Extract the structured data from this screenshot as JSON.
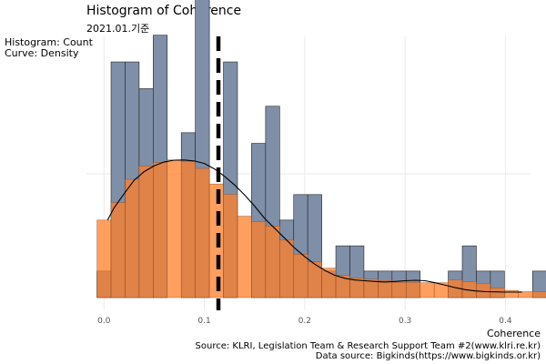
{
  "title": "Histogram of Coherence",
  "subtitle": "2021.01.기준",
  "y_note": {
    "line1": "Histogram: Count",
    "line2": "Curve: Density"
  },
  "caption": {
    "line1": "Source: KLRI, Legislation Team & Research Support Team #2(www.klri.re.kr)",
    "line2": "Data source: Bigkinds(https://www.bigkinds.or.kr)"
  },
  "colors": {
    "histogram": "#7f8fa8",
    "density": "#ff7f2a",
    "outline": "#222222",
    "grid": "#ebebeb"
  },
  "chart_data": {
    "type": "bar",
    "title": "Histogram of Coherence",
    "subtitle": "2021.01.기준",
    "xlabel": "Coherence",
    "xlim": [
      -0.0175,
      0.425
    ],
    "ylim": [
      0,
      1
    ],
    "x_ticks": [
      0.0,
      0.1,
      0.2,
      0.3,
      0.4
    ],
    "x_tick_labels": [
      "0.0",
      "0.1",
      "0.2",
      "0.3",
      "0.4"
    ],
    "grid": true,
    "vline": {
      "x": 0.114,
      "style": "dashed"
    },
    "histogram": {
      "bin_start": -0.007,
      "bin_width": 0.014,
      "counts": [
        0.107,
        0.952,
        0.952,
        0.844,
        1.06,
        0.0,
        0.666,
        1.265,
        0.0,
        0.952,
        0.0,
        0.623,
        0.773,
        0.313,
        0.416,
        0.416,
        0.107,
        0.209,
        0.209,
        0.107,
        0.107,
        0.107,
        0.107,
        0.0,
        0.0,
        0.107,
        0.209,
        0.107,
        0.107,
        0.0,
        0.0,
        0.107,
        0.107
      ],
      "density": [
        0.313,
        0.384,
        0.478,
        0.532,
        0.546,
        0.556,
        0.551,
        0.522,
        0.459,
        0.417,
        0.329,
        0.307,
        0.289,
        0.232,
        0.175,
        0.144,
        0.119,
        0.089,
        0.079,
        0.074,
        0.069,
        0.062,
        0.062,
        0.06,
        0.06,
        0.072,
        0.065,
        0.058,
        0.039,
        0.029,
        0.024,
        0.024,
        0.024
      ]
    },
    "density_curve": {
      "x": [
        0.0035,
        0.01,
        0.02,
        0.03,
        0.04,
        0.05,
        0.06,
        0.07,
        0.08,
        0.09,
        0.1,
        0.11,
        0.12,
        0.13,
        0.14,
        0.15,
        0.16,
        0.17,
        0.18,
        0.19,
        0.2,
        0.21,
        0.22,
        0.23,
        0.24,
        0.25,
        0.26,
        0.27,
        0.28,
        0.29,
        0.3,
        0.31,
        0.32,
        0.33,
        0.34,
        0.35,
        0.36,
        0.37,
        0.38,
        0.39,
        0.4,
        0.4165
      ],
      "y": [
        0.313,
        0.362,
        0.42,
        0.474,
        0.509,
        0.532,
        0.548,
        0.555,
        0.556,
        0.552,
        0.542,
        0.52,
        0.49,
        0.455,
        0.415,
        0.37,
        0.32,
        0.28,
        0.24,
        0.2,
        0.165,
        0.135,
        0.11,
        0.09,
        0.078,
        0.071,
        0.068,
        0.065,
        0.063,
        0.065,
        0.068,
        0.07,
        0.068,
        0.06,
        0.05,
        0.04,
        0.032,
        0.027,
        0.024,
        0.023,
        0.022,
        0.022
      ]
    }
  }
}
